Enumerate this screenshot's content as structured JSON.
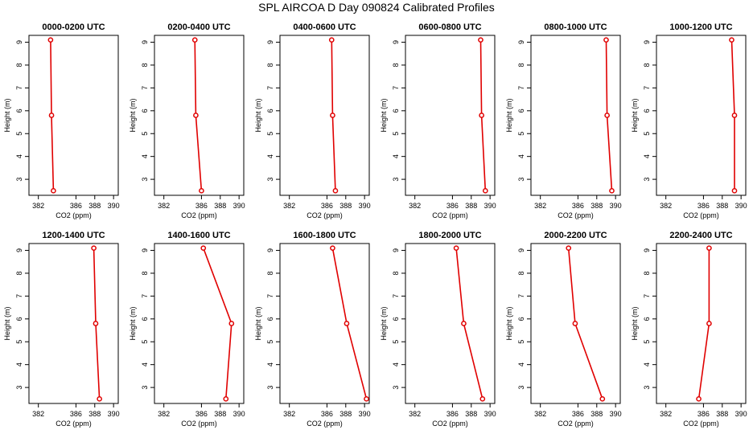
{
  "figure": {
    "title": "SPL AIRCOA D  Day 090824  Calibrated Profiles"
  },
  "colors": {
    "series": "#e00000",
    "axis": "#000000",
    "background": "#ffffff"
  },
  "chart_data": [
    {
      "type": "line",
      "title": "0000-0200 UTC",
      "xlabel": "CO2 (ppm)",
      "ylabel": "Height (m)",
      "xlim": [
        381,
        390.5
      ],
      "ylim": [
        2.3,
        9.3
      ],
      "xticks": [
        382,
        386,
        388,
        390
      ],
      "yticks": [
        3,
        4,
        5,
        6,
        7,
        8,
        9
      ],
      "x": [
        383.6,
        383.4,
        383.3
      ],
      "y": [
        2.5,
        5.8,
        9.1
      ]
    },
    {
      "type": "line",
      "title": "0200-0400 UTC",
      "xlabel": "CO2 (ppm)",
      "ylabel": "Height (m)",
      "xlim": [
        381,
        390.5
      ],
      "ylim": [
        2.3,
        9.3
      ],
      "xticks": [
        382,
        386,
        388,
        390
      ],
      "yticks": [
        3,
        4,
        5,
        6,
        7,
        8,
        9
      ],
      "x": [
        386.0,
        385.4,
        385.3
      ],
      "y": [
        2.5,
        5.8,
        9.1
      ]
    },
    {
      "type": "line",
      "title": "0400-0600 UTC",
      "xlabel": "CO2 (ppm)",
      "ylabel": "Height (m)",
      "xlim": [
        381,
        390.5
      ],
      "ylim": [
        2.3,
        9.3
      ],
      "xticks": [
        382,
        386,
        388,
        390
      ],
      "yticks": [
        3,
        4,
        5,
        6,
        7,
        8,
        9
      ],
      "x": [
        386.9,
        386.6,
        386.5
      ],
      "y": [
        2.5,
        5.8,
        9.1
      ]
    },
    {
      "type": "line",
      "title": "0600-0800 UTC",
      "xlabel": "CO2 (ppm)",
      "ylabel": "Height (m)",
      "xlim": [
        381,
        390.5
      ],
      "ylim": [
        2.3,
        9.3
      ],
      "xticks": [
        382,
        386,
        388,
        390
      ],
      "yticks": [
        3,
        4,
        5,
        6,
        7,
        8,
        9
      ],
      "x": [
        389.5,
        389.1,
        389.0
      ],
      "y": [
        2.5,
        5.8,
        9.1
      ]
    },
    {
      "type": "line",
      "title": "0800-1000 UTC",
      "xlabel": "CO2 (ppm)",
      "ylabel": "Height (m)",
      "xlim": [
        381,
        390.5
      ],
      "ylim": [
        2.3,
        9.3
      ],
      "xticks": [
        382,
        386,
        388,
        390
      ],
      "yticks": [
        3,
        4,
        5,
        6,
        7,
        8,
        9
      ],
      "x": [
        389.6,
        389.1,
        389.0
      ],
      "y": [
        2.5,
        5.8,
        9.1
      ]
    },
    {
      "type": "line",
      "title": "1000-1200 UTC",
      "xlabel": "CO2 (ppm)",
      "ylabel": "Height (m)",
      "xlim": [
        381,
        390.5
      ],
      "ylim": [
        2.3,
        9.3
      ],
      "xticks": [
        382,
        386,
        388,
        390
      ],
      "yticks": [
        3,
        4,
        5,
        6,
        7,
        8,
        9
      ],
      "x": [
        389.3,
        389.3,
        389.0
      ],
      "y": [
        2.5,
        5.8,
        9.1
      ]
    },
    {
      "type": "line",
      "title": "1200-1400 UTC",
      "xlabel": "CO2 (ppm)",
      "ylabel": "Height (m)",
      "xlim": [
        381,
        390.5
      ],
      "ylim": [
        2.3,
        9.3
      ],
      "xticks": [
        382,
        386,
        388,
        390
      ],
      "yticks": [
        3,
        4,
        5,
        6,
        7,
        8,
        9
      ],
      "x": [
        388.5,
        388.1,
        387.9
      ],
      "y": [
        2.5,
        5.8,
        9.1
      ]
    },
    {
      "type": "line",
      "title": "1400-1600 UTC",
      "xlabel": "CO2 (ppm)",
      "ylabel": "Height (m)",
      "xlim": [
        381,
        390.5
      ],
      "ylim": [
        2.3,
        9.3
      ],
      "xticks": [
        382,
        386,
        388,
        390
      ],
      "yticks": [
        3,
        4,
        5,
        6,
        7,
        8,
        9
      ],
      "x": [
        388.6,
        389.2,
        386.2
      ],
      "y": [
        2.5,
        5.8,
        9.1
      ]
    },
    {
      "type": "line",
      "title": "1600-1800 UTC",
      "xlabel": "CO2 (ppm)",
      "ylabel": "Height (m)",
      "xlim": [
        381,
        390.5
      ],
      "ylim": [
        2.3,
        9.3
      ],
      "xticks": [
        382,
        386,
        388,
        390
      ],
      "yticks": [
        3,
        4,
        5,
        6,
        7,
        8,
        9
      ],
      "x": [
        390.2,
        388.1,
        386.6
      ],
      "y": [
        2.5,
        5.8,
        9.1
      ]
    },
    {
      "type": "line",
      "title": "1800-2000 UTC",
      "xlabel": "CO2 (ppm)",
      "ylabel": "Height (m)",
      "xlim": [
        381,
        390.5
      ],
      "ylim": [
        2.3,
        9.3
      ],
      "xticks": [
        382,
        386,
        388,
        390
      ],
      "yticks": [
        3,
        4,
        5,
        6,
        7,
        8,
        9
      ],
      "x": [
        389.2,
        387.2,
        386.4
      ],
      "y": [
        2.5,
        5.8,
        9.1
      ]
    },
    {
      "type": "line",
      "title": "2000-2200 UTC",
      "xlabel": "CO2 (ppm)",
      "ylabel": "Height (m)",
      "xlim": [
        381,
        390.5
      ],
      "ylim": [
        2.3,
        9.3
      ],
      "xticks": [
        382,
        386,
        388,
        390
      ],
      "yticks": [
        3,
        4,
        5,
        6,
        7,
        8,
        9
      ],
      "x": [
        388.6,
        385.7,
        385.0
      ],
      "y": [
        2.5,
        5.8,
        9.1
      ]
    },
    {
      "type": "line",
      "title": "2200-2400 UTC",
      "xlabel": "CO2 (ppm)",
      "ylabel": "Height (m)",
      "xlim": [
        381,
        390.5
      ],
      "ylim": [
        2.3,
        9.3
      ],
      "xticks": [
        382,
        386,
        388,
        390
      ],
      "yticks": [
        3,
        4,
        5,
        6,
        7,
        8,
        9
      ],
      "x": [
        385.5,
        386.6,
        386.6
      ],
      "y": [
        2.5,
        5.8,
        9.1
      ]
    }
  ]
}
